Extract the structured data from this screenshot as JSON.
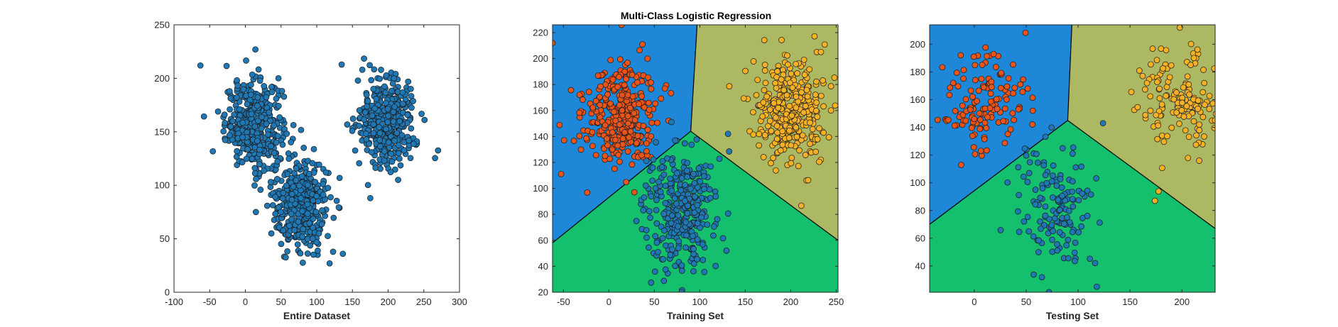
{
  "figure_title": "Multi-Class Logistic Regression",
  "colors": {
    "blue_region": "#1f87d8",
    "green_region": "#14c06d",
    "olive_region": "#adb862",
    "blue_point": "#1f77b4",
    "orange_point": "#e8541a",
    "yellow_point": "#f5b025",
    "point_edge": "#1a1a1a"
  },
  "chart_data": [
    {
      "type": "scatter",
      "name": "entire",
      "xlabel": "Entire Dataset",
      "xlim": [
        -100,
        300
      ],
      "ylim": [
        0,
        250
      ],
      "xticks": [
        -100,
        -50,
        0,
        50,
        100,
        150,
        200,
        250,
        300
      ],
      "yticks": [
        0,
        50,
        100,
        150,
        200,
        250
      ],
      "regions": false,
      "clusters": [
        {
          "center": [
            12,
            157
          ],
          "spread": [
            20,
            20
          ],
          "count": 420,
          "color": "blue_point"
        },
        {
          "center": [
            78,
            82
          ],
          "spread": [
            20,
            22
          ],
          "count": 420,
          "color": "blue_point"
        },
        {
          "center": [
            198,
            160
          ],
          "spread": [
            20,
            20
          ],
          "count": 420,
          "color": "blue_point"
        }
      ],
      "outliers": [
        [
          -63,
          212
        ],
        [
          14,
          227
        ],
        [
          118,
          27
        ],
        [
          175,
          88
        ]
      ]
    },
    {
      "type": "scatter",
      "name": "training",
      "title": "Multi-Class Logistic Regression",
      "xlabel": "Training Set",
      "xlim": [
        -62,
        252
      ],
      "ylim": [
        20,
        226
      ],
      "xticks": [
        -50,
        0,
        50,
        100,
        150,
        200,
        250
      ],
      "yticks": [
        20,
        40,
        60,
        80,
        100,
        120,
        140,
        160,
        180,
        200,
        220
      ],
      "regions": true,
      "boundary": {
        "junction": [
          90,
          144
        ],
        "top": [
          97,
          226
        ],
        "left": [
          -62,
          58
        ],
        "right": [
          252,
          60
        ]
      },
      "clusters": [
        {
          "center": [
            12,
            157
          ],
          "spread": [
            20,
            20
          ],
          "count": 330,
          "color": "orange_point"
        },
        {
          "center": [
            78,
            82
          ],
          "spread": [
            20,
            22
          ],
          "count": 330,
          "color": "blue_point"
        },
        {
          "center": [
            198,
            160
          ],
          "spread": [
            20,
            20
          ],
          "count": 330,
          "color": "yellow_point"
        }
      ],
      "outliers": [
        [
          -62,
          212
        ],
        [
          14,
          226
        ],
        [
          131,
          142
        ],
        [
          80,
          20
        ],
        [
          28,
          97
        ]
      ]
    },
    {
      "type": "scatter",
      "name": "testing",
      "xlabel": "Testing Set",
      "xlim": [
        -43,
        232
      ],
      "ylim": [
        21,
        214
      ],
      "xticks": [
        0,
        50,
        100,
        150,
        200
      ],
      "yticks": [
        40,
        60,
        80,
        100,
        120,
        140,
        160,
        180,
        200
      ],
      "regions": true,
      "boundary": {
        "junction": [
          90,
          145
        ],
        "top": [
          94,
          214
        ],
        "left": [
          -43,
          70
        ],
        "right": [
          232,
          67
        ]
      },
      "clusters": [
        {
          "center": [
            12,
            157
          ],
          "spread": [
            20,
            20
          ],
          "count": 140,
          "color": "orange_point"
        },
        {
          "center": [
            78,
            82
          ],
          "spread": [
            20,
            22
          ],
          "count": 140,
          "color": "blue_point"
        },
        {
          "center": [
            198,
            160
          ],
          "spread": [
            20,
            20
          ],
          "count": 140,
          "color": "yellow_point"
        }
      ],
      "outliers": [
        [
          198,
          212
        ],
        [
          72,
          21
        ],
        [
          124,
          143
        ],
        [
          174,
          87
        ],
        [
          118,
          25
        ]
      ]
    }
  ]
}
